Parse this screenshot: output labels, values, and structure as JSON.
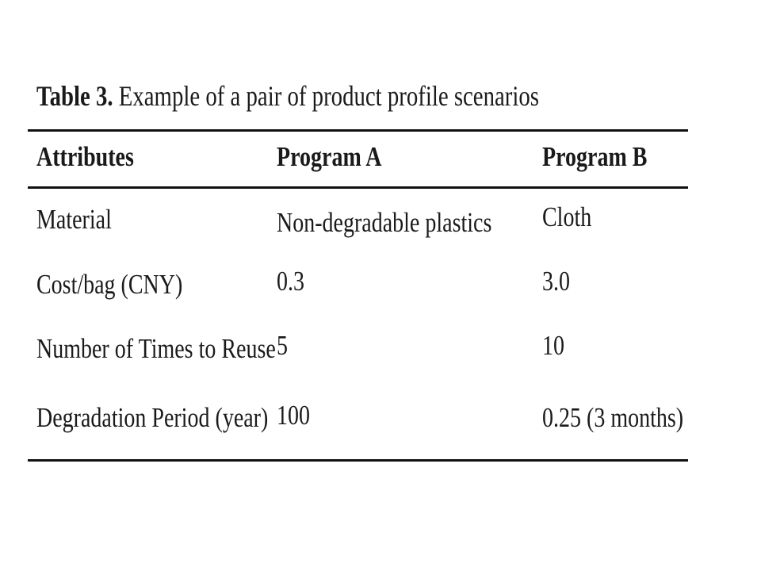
{
  "table": {
    "caption_label": "Table 3.",
    "caption_text": " Example of a pair of product profile scenarios",
    "headers": [
      "Attributes",
      "Program A",
      "Program B"
    ],
    "rows": [
      [
        "Material",
        "Non-degradable plastics",
        "Cloth"
      ],
      [
        "Cost/bag (CNY)",
        "0.3",
        "3.0"
      ],
      [
        "Number of Times to Reuse",
        "5",
        "10"
      ],
      [
        "Degradation Period (year)",
        "100",
        "0.25 (3 months)"
      ]
    ]
  }
}
